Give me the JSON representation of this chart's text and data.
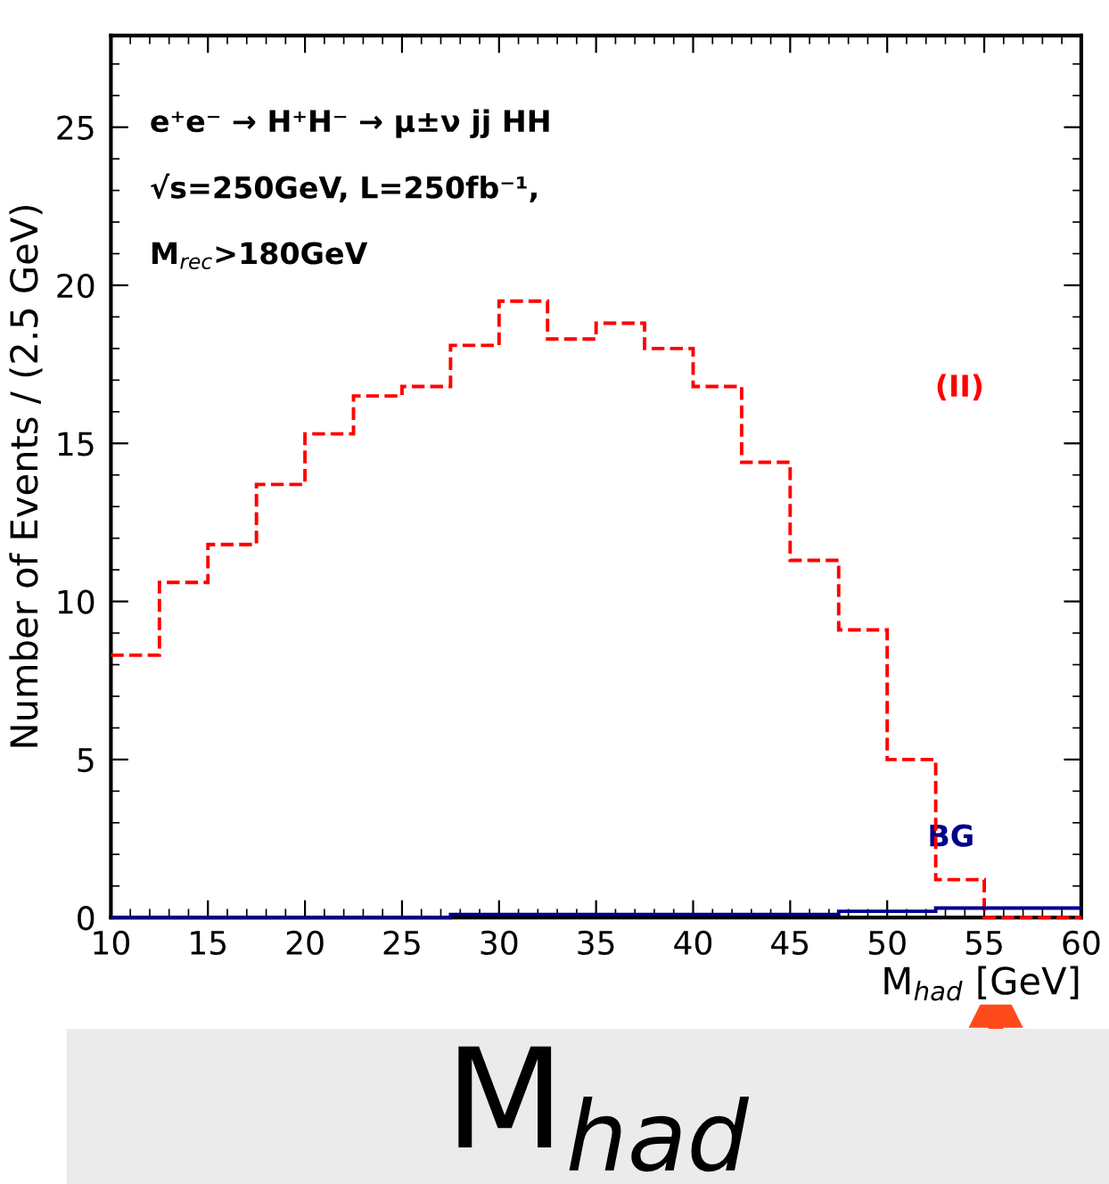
{
  "chart_data": {
    "type": "histogram",
    "ylabel": "Number of Events / (2.5 GeV)",
    "xlabel": "M$_{had}$ [GeV]",
    "bins": [
      10,
      12.5,
      15,
      17.5,
      20,
      22.5,
      25,
      27.5,
      30,
      32.5,
      35,
      37.5,
      40,
      42.5,
      45,
      47.5,
      50,
      52.5,
      55,
      57.5,
      60
    ],
    "series": [
      {
        "name": "(II)",
        "color": "#ff0000",
        "line_style": "dashed",
        "values": [
          8.3,
          10.6,
          11.8,
          13.7,
          15.3,
          16.5,
          16.8,
          18.1,
          19.5,
          18.3,
          18.8,
          18.0,
          16.8,
          14.4,
          11.3,
          9.1,
          5.0,
          1.2,
          0,
          0
        ]
      },
      {
        "name": "BG",
        "color": "#00008b",
        "line_style": "solid",
        "values": [
          0,
          0,
          0,
          0,
          0,
          0,
          0,
          0.1,
          0.1,
          0.1,
          0.1,
          0.1,
          0.1,
          0.1,
          0.1,
          0.2,
          0.2,
          0.3,
          0.3,
          0.3
        ]
      }
    ],
    "xlim": [
      10,
      60
    ],
    "ylim": [
      0,
      27.9
    ],
    "xticks": [
      10,
      {
        "value": 11,
        "label": null
      },
      {
        "value": 12,
        "label": null
      },
      {
        "value": 13,
        "label": null
      },
      {
        "value": 14,
        "label": null
      },
      15,
      {
        "value": 16,
        "label": null
      },
      {
        "value": 17,
        "label": null
      },
      {
        "value": 18,
        "label": null
      },
      {
        "value": 19,
        "label": null
      },
      20,
      {
        "value": 21,
        "label": null
      },
      {
        "value": 22,
        "label": null
      },
      {
        "value": 23,
        "label": null
      },
      {
        "value": 24,
        "label": null
      },
      25,
      {
        "value": 26,
        "label": null
      },
      {
        "value": 27,
        "label": null
      },
      {
        "value": 28,
        "label": null
      },
      {
        "value": 29,
        "label": null
      },
      30,
      {
        "value": 31,
        "label": null
      },
      {
        "value": 32,
        "label": null
      },
      {
        "value": 33,
        "label": null
      },
      {
        "value": 34,
        "label": null
      },
      35,
      {
        "value": 36,
        "label": null
      },
      {
        "value": 37,
        "label": null
      },
      {
        "value": 38,
        "label": null
      },
      {
        "value": 39,
        "label": null
      },
      40,
      {
        "value": 41,
        "label": null
      },
      {
        "value": 42,
        "label": null
      },
      {
        "value": 43,
        "label": null
      },
      {
        "value": 44,
        "label": null
      },
      45,
      {
        "value": 46,
        "label": null
      },
      {
        "value": 47,
        "label": null
      },
      {
        "value": 48,
        "label": null
      },
      {
        "value": 49,
        "label": null
      },
      50,
      {
        "value": 51,
        "label": null
      },
      {
        "value": 52,
        "label": null
      },
      {
        "value": 53,
        "label": null
      },
      {
        "value": 54,
        "label": null
      },
      55,
      {
        "value": 56,
        "label": null
      },
      {
        "value": 57,
        "label": null
      },
      {
        "value": 58,
        "label": null
      },
      {
        "value": 59,
        "label": null
      },
      60
    ],
    "yticks": [
      0,
      {
        "value": 1,
        "label": null
      },
      {
        "value": 2,
        "label": null
      },
      {
        "value": 3,
        "label": null
      },
      {
        "value": 4,
        "label": null
      },
      5,
      {
        "value": 6,
        "label": null
      },
      {
        "value": 7,
        "label": null
      },
      {
        "value": 8,
        "label": null
      },
      {
        "value": 9,
        "label": null
      },
      10,
      {
        "value": 11,
        "label": null
      },
      {
        "value": 12,
        "label": null
      },
      {
        "value": 13,
        "label": null
      },
      {
        "value": 14,
        "label": null
      },
      15,
      {
        "value": 16,
        "label": null
      },
      {
        "value": 17,
        "label": null
      },
      {
        "value": 18,
        "label": null
      },
      {
        "value": 19,
        "label": null
      },
      20,
      {
        "value": 21,
        "label": null
      },
      {
        "value": 22,
        "label": null
      },
      {
        "value": 23,
        "label": null
      },
      {
        "value": 24,
        "label": null
      },
      25,
      {
        "value": 26,
        "label": null
      },
      {
        "value": 27,
        "label": null
      }
    ],
    "grid": false,
    "annotations": [
      "e⁺e⁻ → H⁺H⁻ → μ±ν jj HH",
      "√s=250GeV, L=250fb⁻¹,",
      "M$_{rec}$>180GeV",
      "M$_{had}$"
    ]
  }
}
